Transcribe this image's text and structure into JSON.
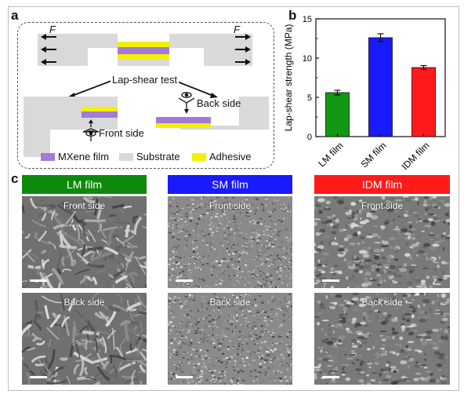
{
  "panel_labels": {
    "a": "a",
    "b": "b",
    "c": "c"
  },
  "schematic": {
    "force_label": "F",
    "test_label": "Lap-shear test",
    "back_side_label": "Back side",
    "front_side_label": "Front side",
    "legend": [
      {
        "label": "MXene film",
        "color": "#a37ad6"
      },
      {
        "label": "Substrate",
        "color": "#d9d9d9"
      },
      {
        "label": "Adhesive",
        "color": "#f4f000"
      }
    ]
  },
  "chart_data": {
    "type": "bar",
    "categories": [
      "LM film",
      "SM film",
      "IDM film"
    ],
    "values": [
      5.6,
      12.6,
      8.8
    ],
    "errors": [
      0.3,
      0.5,
      0.25
    ],
    "colors": [
      "#139813",
      "#1a1afe",
      "#fe1a1a"
    ],
    "ylabel": "Lap-shear strength (MPa)",
    "ylim": [
      0,
      15
    ],
    "yticks": [
      0,
      5,
      10,
      15
    ]
  },
  "sem": {
    "columns": [
      {
        "header": "LM film",
        "color": "#0d8a0d"
      },
      {
        "header": "SM film",
        "color": "#1a1aff"
      },
      {
        "header": "IDM film",
        "color": "#ff1a1a"
      }
    ],
    "row_labels": [
      "Front side",
      "Back side"
    ]
  }
}
